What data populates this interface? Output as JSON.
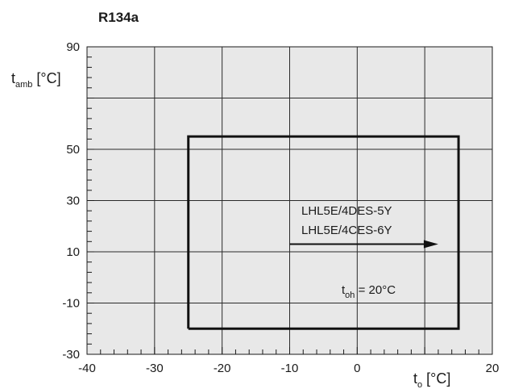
{
  "chart_data": {
    "type": "line",
    "title": "R134a",
    "x": {
      "label_main": "t",
      "label_sub": "o",
      "label_unit": " [°C]",
      "lim": [
        -40,
        20
      ],
      "ticks": [
        -40,
        -30,
        -20,
        -10,
        0,
        10,
        20
      ],
      "tick_labels": [
        "-40",
        "-30",
        "-20",
        "-10",
        "0",
        "",
        "20"
      ]
    },
    "y": {
      "label_main": "t",
      "label_sub": "amb",
      "label_unit": " [°C]",
      "lim": [
        -30,
        90
      ],
      "ticks": [
        -30,
        -10,
        10,
        30,
        50,
        70,
        90
      ],
      "tick_labels": [
        "-30",
        "-10",
        "10",
        "30",
        "50",
        "",
        "90"
      ]
    },
    "grid": true,
    "series": [
      {
        "points": [
          [
            -25,
            -20
          ],
          [
            -25,
            55
          ],
          [
            15,
            55
          ],
          [
            15,
            -20
          ],
          [
            -25,
            -20
          ]
        ]
      }
    ],
    "annotations": {
      "model_1": "LHL5E/4DES-5Y",
      "model_2": "LHL5E/4CES-6Y",
      "toh_main": "t",
      "toh_sub": "oh",
      "toh_rest": " = 20°C"
    },
    "arrow": {
      "from": [
        -10,
        13
      ],
      "to": [
        12,
        13
      ]
    }
  }
}
